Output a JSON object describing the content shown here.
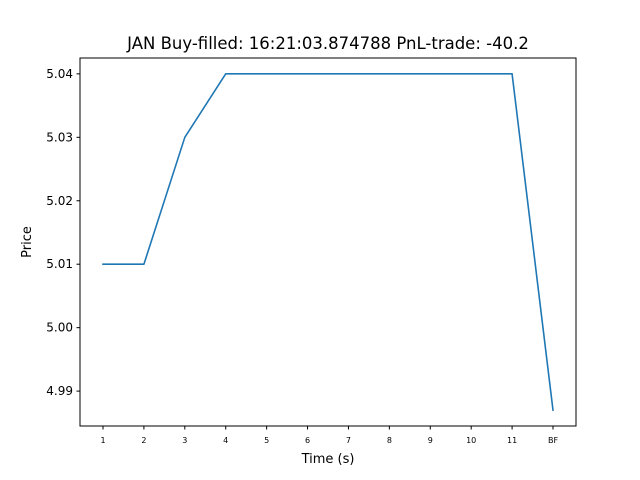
{
  "chart_data": {
    "type": "line",
    "title": "JAN  Buy-filled:  16:21:03.874788  PnL-trade:  -40.2",
    "xlabel": "Time (s)",
    "ylabel": "Price",
    "categories": [
      "1",
      "2",
      "3",
      "4",
      "5",
      "6",
      "7",
      "8",
      "9",
      "10",
      "11",
      "BF"
    ],
    "series": [
      {
        "values": [
          5.01,
          5.01,
          5.03,
          5.04,
          5.04,
          5.04,
          5.04,
          5.04,
          5.04,
          5.04,
          5.04,
          4.987
        ]
      }
    ],
    "yticks": [
      "4.99",
      "5.00",
      "5.01",
      "5.02",
      "5.03",
      "5.04"
    ],
    "ylim": [
      4.9845,
      5.0425
    ],
    "grid": false,
    "legend": "none",
    "line_color": "#1f77b4"
  }
}
